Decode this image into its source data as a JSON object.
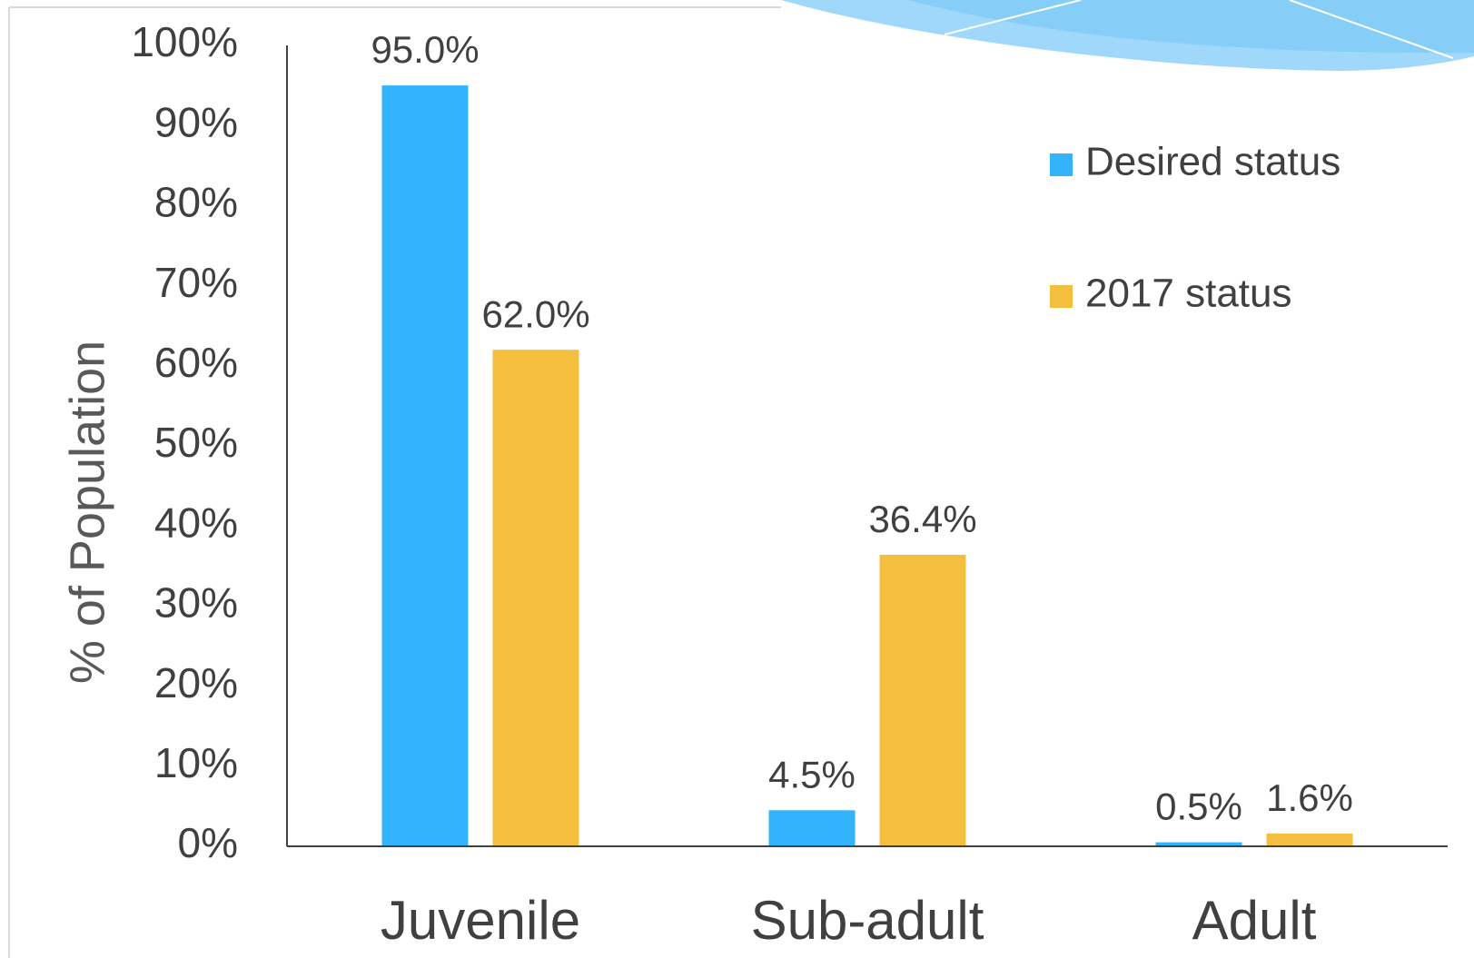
{
  "chart_data": {
    "type": "bar",
    "y_label": "% of Population",
    "categories": [
      "Juvenile",
      "Sub-adult",
      "Adult"
    ],
    "series": [
      {
        "name": "Desired status",
        "color": "#33b3fb",
        "values": [
          95,
          4.5,
          0.5
        ],
        "value_labels": [
          "95.0%",
          "4.5%",
          "0.5%"
        ]
      },
      {
        "name": "2017 status",
        "color": "#f4be3e",
        "values": [
          62,
          36.4,
          1.6
        ],
        "value_labels": [
          "62.0%",
          "36.4%",
          "1.6%"
        ]
      }
    ],
    "ylim": [
      0,
      100
    ],
    "yticks": [
      {
        "value": 0,
        "label": "0%"
      },
      {
        "value": 10,
        "label": "10%"
      },
      {
        "value": 20,
        "label": "20%"
      },
      {
        "value": 30,
        "label": "30%"
      },
      {
        "value": 40,
        "label": "40%"
      },
      {
        "value": 50,
        "label": "50%"
      },
      {
        "value": 60,
        "label": "60%"
      },
      {
        "value": 70,
        "label": "70%"
      },
      {
        "value": 80,
        "label": "80%"
      },
      {
        "value": 90,
        "label": "90%"
      },
      {
        "value": 100,
        "label": "100%"
      }
    ],
    "grid": false,
    "legend": "top-right"
  }
}
